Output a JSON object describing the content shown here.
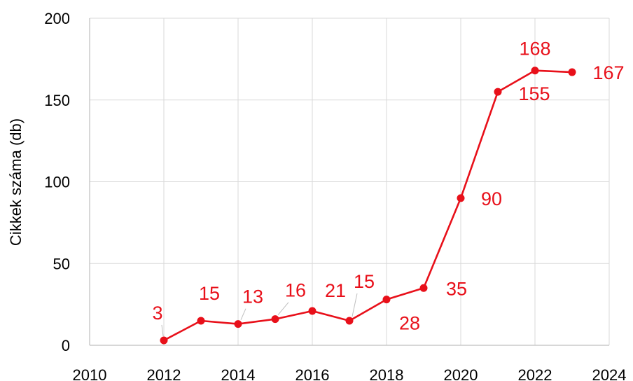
{
  "chart_data": {
    "type": "line",
    "title": "",
    "xlabel": "",
    "ylabel": "Cikkek száma (db)",
    "xlim": [
      2010,
      2024
    ],
    "ylim": [
      0,
      200
    ],
    "x_ticks": [
      "2010",
      "2012",
      "2014",
      "2016",
      "2018",
      "2020",
      "2022",
      "2024"
    ],
    "y_ticks": [
      "0",
      "50",
      "100",
      "150",
      "200"
    ],
    "grid": true,
    "legend": "none",
    "series": [
      {
        "color": "#e8101a",
        "x": [
          2012,
          2013,
          2014,
          2015,
          2016,
          2017,
          2018,
          2019,
          2020,
          2021,
          2022,
          2023
        ],
        "values": [
          3,
          15,
          13,
          16,
          21,
          15,
          28,
          35,
          90,
          155,
          168,
          167
        ],
        "labels": [
          "3",
          "15",
          "13",
          "16",
          "21",
          "15",
          "28",
          "35",
          "90",
          "155",
          "168",
          "167"
        ]
      }
    ]
  }
}
